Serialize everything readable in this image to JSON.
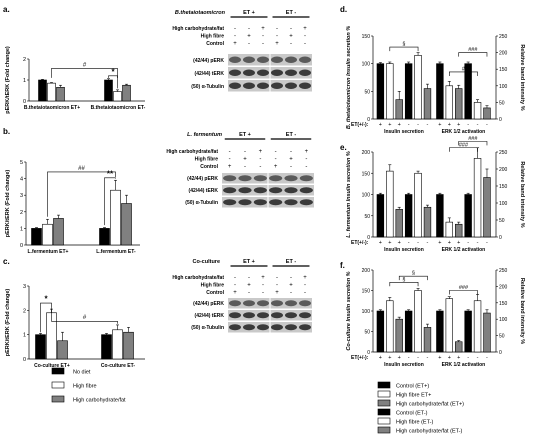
{
  "legend_main": [
    {
      "label": "No diet",
      "color": "#000000"
    },
    {
      "label": "High fibre",
      "color": "#ffffff"
    },
    {
      "label": "High carbohydrate/fat",
      "color": "#808080"
    }
  ],
  "legend_right": [
    {
      "label": "Control (ET+)",
      "color": "#000000"
    },
    {
      "label": "High fibre  ET+",
      "color": "#ffffff"
    },
    {
      "label": "High carbohydrate/fat (ET+)",
      "color": "#808080"
    },
    {
      "label": "Control (ET-)",
      "color": "#000000"
    },
    {
      "label": " High fibre (ET-)",
      "color": "#ffffff"
    },
    {
      "label": "High carbohydrate/fat (ET-)",
      "color": "#808080"
    }
  ],
  "blot_row_labels": [
    "(42/44) pERK",
    "(42/44) tERK",
    "(50) α-Tubulin"
  ],
  "blot_treatments": [
    "High carbohydrate/fat",
    "High fibre",
    "Control"
  ],
  "chart_data": [
    {
      "panel": "a.",
      "type": "bar",
      "ylabel": "pERK/tERK (Fold change)",
      "ylim": [
        0,
        2
      ],
      "yticks": [
        "0",
        "1",
        "2"
      ],
      "blot_title": "B.thetaiotaomicron",
      "groups": [
        "ET +",
        "ET -"
      ],
      "categories": [
        "B.thetaiotaomicron ET+",
        "B.thetaiotaomicron ET-"
      ],
      "series": [
        {
          "name": "No diet",
          "values": [
            1.0,
            1.0
          ],
          "errors": [
            0.03,
            0.06
          ]
        },
        {
          "name": "High fibre",
          "values": [
            0.85,
            0.45
          ],
          "errors": [
            0.03,
            0.08
          ]
        },
        {
          "name": "High carbohydrate/fat",
          "values": [
            0.65,
            0.75
          ],
          "errors": [
            0.1,
            0.05
          ]
        }
      ],
      "annotations": [
        "#",
        "*"
      ]
    },
    {
      "panel": "b.",
      "type": "bar",
      "ylabel": "pERK/tERK (Fold change)",
      "ylim": [
        0,
        5
      ],
      "yticks": [
        "0",
        "1",
        "2",
        "3",
        "4",
        "5"
      ],
      "blot_title": "L. fermentum",
      "groups": [
        "ET +",
        "ET -"
      ],
      "categories": [
        "L.fermentum ET+",
        "L.fermentum ET-"
      ],
      "series": [
        {
          "name": "No diet",
          "values": [
            1.0,
            1.0
          ],
          "errors": [
            0.05,
            0.05
          ]
        },
        {
          "name": "High fibre",
          "values": [
            1.25,
            3.3
          ],
          "errors": [
            0.3,
            0.6
          ]
        },
        {
          "name": "High carbohydrate/fat",
          "values": [
            1.6,
            2.5
          ],
          "errors": [
            0.2,
            0.5
          ]
        }
      ],
      "annotations": [
        "##",
        "**"
      ]
    },
    {
      "panel": "c.",
      "type": "bar",
      "ylabel": "pERK/tERK (Fold change)",
      "ylim": [
        0,
        3
      ],
      "yticks": [
        "0",
        "1",
        "2",
        "3"
      ],
      "blot_title": "Co-culture",
      "groups": [
        "ET +",
        "ET -"
      ],
      "categories": [
        "Co-culture ET+",
        "Co-culture ET-"
      ],
      "series": [
        {
          "name": "No diet",
          "values": [
            1.0,
            1.0
          ],
          "errors": [
            0.05,
            0.05
          ]
        },
        {
          "name": "High fibre",
          "values": [
            1.9,
            1.2
          ],
          "errors": [
            0.15,
            0.2
          ]
        },
        {
          "name": "High carbohydrate/fat",
          "values": [
            0.75,
            1.1
          ],
          "errors": [
            0.35,
            0.2
          ]
        }
      ],
      "annotations": [
        "*",
        "#"
      ]
    },
    {
      "panel": "d.",
      "type": "bar",
      "ylabel": "B. thetaiotaomicron Insulin secretion %",
      "ylabel2": "Relative band intensity %",
      "ylim": [
        0,
        150
      ],
      "ylim2": [
        0,
        250
      ],
      "yticks": [
        "0",
        "50",
        "100",
        "150"
      ],
      "yticks2": [
        "0",
        "50",
        "100",
        "150",
        "200",
        "250"
      ],
      "groups": [
        "Insulin secretion",
        "ERK 1/2 activation"
      ],
      "et_label": "ET(+/-):",
      "et_signs": [
        "+",
        "+",
        "+",
        "-",
        "-",
        "-",
        "+",
        "+",
        "+",
        "-",
        "-",
        "-"
      ],
      "values": [
        100,
        100,
        35,
        100,
        115,
        55,
        100,
        60,
        55,
        100,
        30,
        20
      ],
      "errors": [
        2,
        3,
        15,
        3,
        5,
        8,
        3,
        8,
        6,
        3,
        5,
        4
      ],
      "annotations": [
        "§",
        "#",
        "###"
      ]
    },
    {
      "panel": "e.",
      "type": "bar",
      "ylabel": "L. fermentum Insulin secretion %",
      "ylabel2": "Relative band intensity %",
      "ylim": [
        0,
        200
      ],
      "ylim2": [
        0,
        250
      ],
      "yticks": [
        "0",
        "50",
        "100",
        "150",
        "200"
      ],
      "yticks2": [
        "0",
        "50",
        "100",
        "150",
        "200",
        "250"
      ],
      "groups": [
        "Insulin secretion",
        "ERK 1/2 activation"
      ],
      "et_label": "ET(+/-):",
      "et_signs": [
        "+",
        "+",
        "+",
        "-",
        "-",
        "-",
        "+",
        "+",
        "+",
        "-",
        "-",
        "-"
      ],
      "values": [
        100,
        155,
        65,
        100,
        150,
        70,
        100,
        35,
        30,
        100,
        185,
        140
      ],
      "errors": [
        3,
        15,
        5,
        3,
        5,
        5,
        3,
        10,
        5,
        3,
        25,
        20
      ],
      "annotations": [
        "###",
        "###"
      ]
    },
    {
      "panel": "f.",
      "type": "bar",
      "ylabel": "Co-culture Insulin secretion %",
      "ylabel2": "Relative band intensity %",
      "ylim": [
        0,
        200
      ],
      "ylim2": [
        0,
        250
      ],
      "yticks": [
        "0",
        "50",
        "100",
        "150",
        "200"
      ],
      "yticks2": [
        "0",
        "50",
        "100",
        "150",
        "200",
        "250"
      ],
      "groups": [
        "Insulin secretion",
        "ERK 1/2 activation"
      ],
      "et_label": "ET(+/-):",
      "et_signs": [
        "+",
        "+",
        "+",
        "-",
        "-",
        "-",
        "+",
        "+",
        "+",
        "-",
        "-",
        "-"
      ],
      "values": [
        100,
        125,
        80,
        100,
        150,
        60,
        100,
        130,
        25,
        100,
        125,
        95
      ],
      "errors": [
        3,
        8,
        5,
        3,
        5,
        8,
        3,
        5,
        3,
        3,
        15,
        8
      ],
      "annotations": [
        "§",
        "§",
        "###"
      ]
    }
  ]
}
